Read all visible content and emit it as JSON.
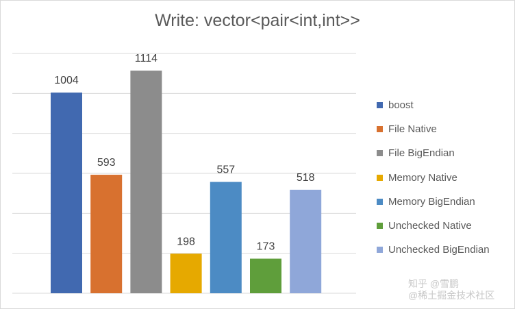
{
  "chart_data": {
    "type": "bar",
    "title": "Write: vector<pair<int,int>>",
    "categories": [
      "boost",
      "File Native",
      "File BigEndian",
      "Memory Native",
      "Memory BigEndian",
      "Unchecked Native",
      "Unchecked BigEndian"
    ],
    "values": [
      1004,
      593,
      1114,
      198,
      557,
      173,
      518
    ],
    "colors": [
      "#4169b0",
      "#d8712f",
      "#8c8c8c",
      "#e6a900",
      "#4c8bc4",
      "#5f9e3b",
      "#8fa7d9"
    ],
    "ylim": [
      0,
      1200
    ],
    "grid": true,
    "legend_position": "right",
    "xlabel": "",
    "ylabel": ""
  },
  "watermark": {
    "line1": "知乎 @雪鹏",
    "line2": "@稀土掘金技术社区"
  }
}
